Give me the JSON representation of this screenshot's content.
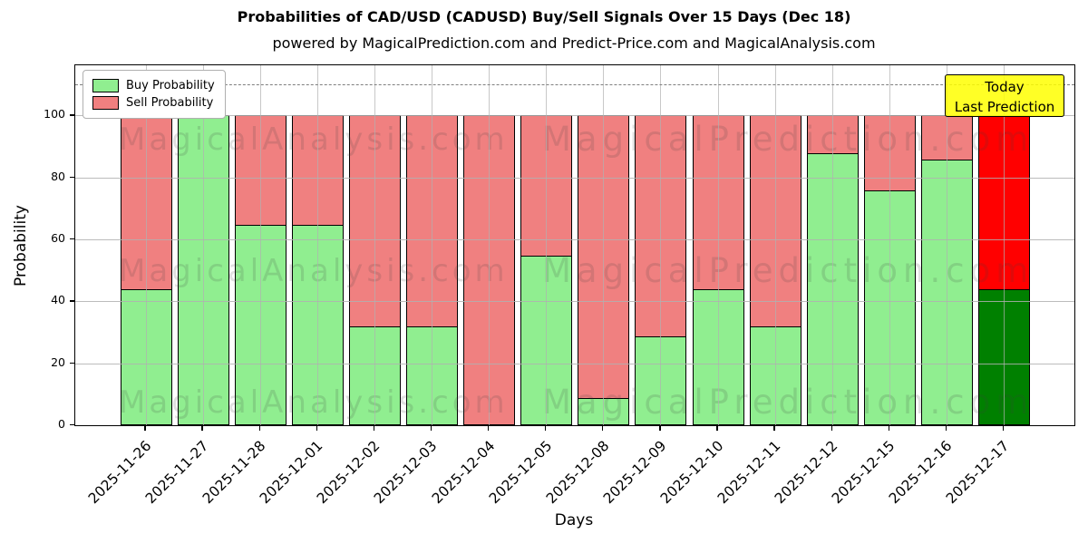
{
  "title": "Probabilities of CAD/USD (CADUSD) Buy/Sell Signals Over 15 Days (Dec 18)",
  "subtitle": "powered by MagicalPrediction.com and Predict-Price.com and MagicalAnalysis.com",
  "axes": {
    "ylabel": "Probability",
    "xlabel": "Days",
    "yticks": [
      0,
      20,
      40,
      60,
      80,
      100
    ],
    "ylim": [
      0,
      116
    ],
    "grid": "on",
    "dashed_line_y": 110
  },
  "legend": {
    "position": "upper-left",
    "items": [
      {
        "label": "Buy Probability",
        "color": "#90EE90"
      },
      {
        "label": "Sell Probability",
        "color": "#F08080"
      }
    ]
  },
  "annotation": {
    "line1": "Today",
    "line2": "Last Prediction",
    "bg_color": "#FFFF00"
  },
  "watermarks": {
    "left_text": "MagicalAnalysis.com",
    "right_text": "MagicalPrediction.com"
  },
  "colors": {
    "buy": "#90EE90",
    "sell": "#F08080",
    "today_buy": "#008000",
    "today_sell": "#FF0000",
    "bar_edge": "#000000",
    "grid": "#b0b0b0",
    "dashed_line": "#7f7f7f",
    "annotation_bg": "#FFFF00"
  },
  "chart_data": {
    "type": "bar",
    "stacked": true,
    "title": "Probabilities of CAD/USD (CADUSD) Buy/Sell Signals Over 15 Days (Dec 18)",
    "xlabel": "Days",
    "ylabel": "Probability",
    "ylim": [
      0,
      116
    ],
    "legend_position": "upper-left",
    "grid": true,
    "categories": [
      "2025-11-26",
      "2025-11-27",
      "2025-11-28",
      "2025-12-01",
      "2025-12-02",
      "2025-12-03",
      "2025-12-04",
      "2025-12-05",
      "2025-12-08",
      "2025-12-09",
      "2025-12-10",
      "2025-12-11",
      "2025-12-12",
      "2025-12-15",
      "2025-12-16",
      "2025-12-17"
    ],
    "series": [
      {
        "name": "Buy Probability",
        "color": "#90EE90",
        "values": [
          44,
          100,
          65,
          65,
          32,
          32,
          0,
          55,
          9,
          29,
          44,
          32,
          88,
          76,
          86,
          44
        ]
      },
      {
        "name": "Sell Probability",
        "color": "#F08080",
        "values": [
          56,
          0,
          35,
          35,
          68,
          68,
          100,
          45,
          91,
          71,
          56,
          68,
          12,
          24,
          14,
          56
        ]
      }
    ],
    "today_bar": {
      "index": 15,
      "buy_color": "#008000",
      "sell_color": "#FF0000",
      "label": "Today / Last Prediction"
    }
  }
}
